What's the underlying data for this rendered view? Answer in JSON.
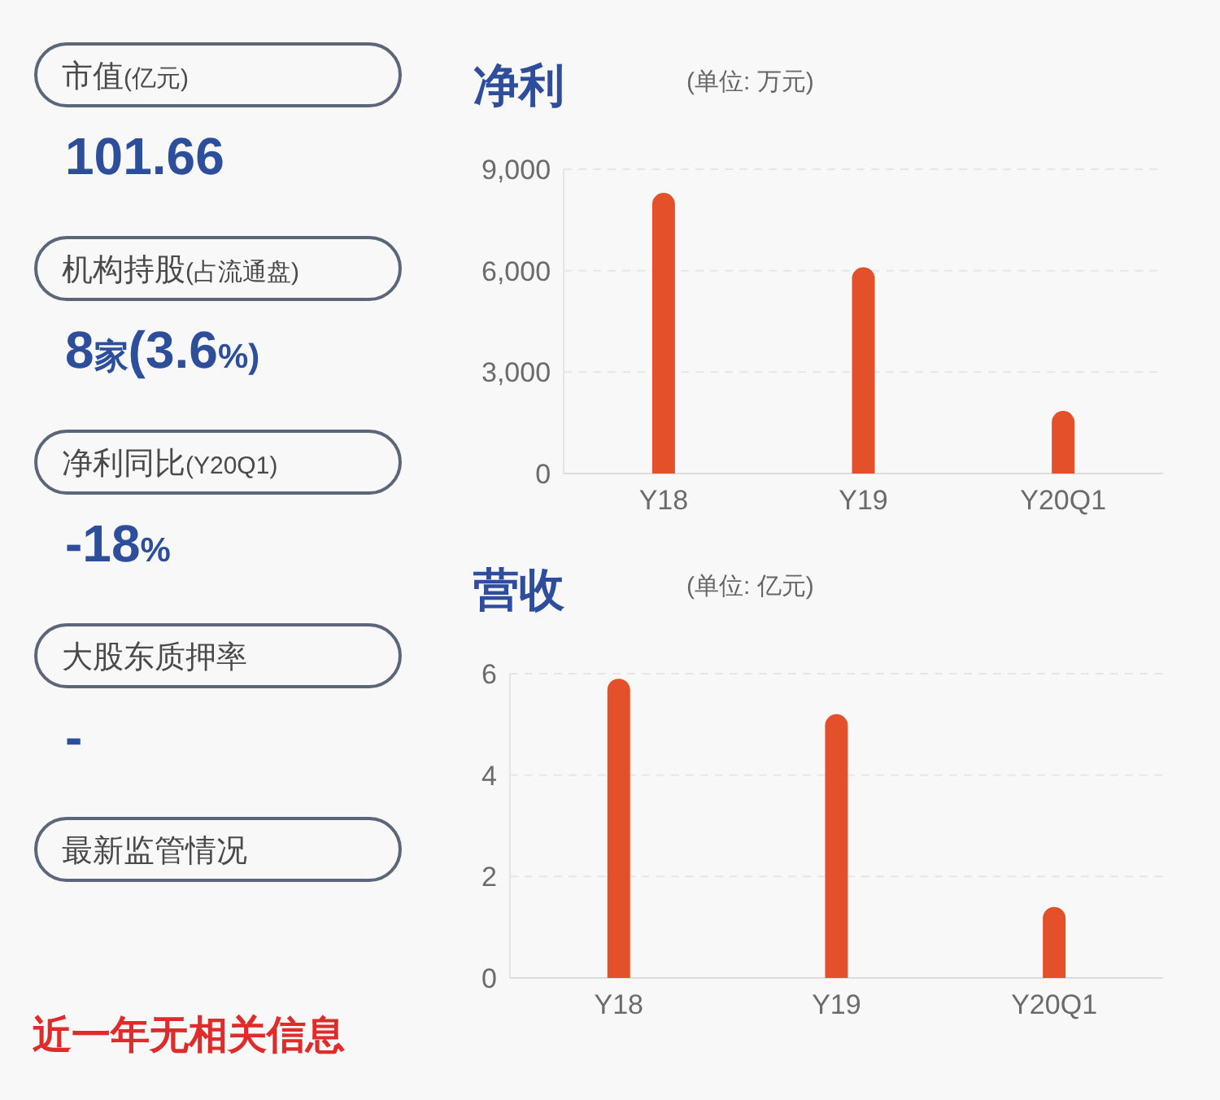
{
  "chart_data": [
    {
      "type": "other",
      "annotations": [
        "市值(亿元)",
        "101.66",
        "机构持股(占流通盘)",
        "8家(3.6%)",
        "净利同比(Y20Q1)",
        "-18%",
        "大股东质押率",
        "-",
        "最新监管情况",
        "近一年无相关信息"
      ]
    },
    {
      "type": "bar",
      "title": "净利",
      "subtitle": "(单位: 万元)",
      "categories": [
        "Y18",
        "Y19",
        "Y20Q1"
      ],
      "values": [
        8300,
        6100,
        1850
      ],
      "color": "#e3502a",
      "ylim": [
        0,
        9000
      ],
      "yticks": [
        0,
        {
          "value": 3000,
          "label": "3,000"
        },
        {
          "value": 6000,
          "label": "6,000"
        },
        {
          "value": 9000,
          "label": "9,000"
        }
      ],
      "grid": "y"
    },
    {
      "type": "bar",
      "title": "营收",
      "subtitle": "(单位: 亿元)",
      "categories": [
        "Y18",
        "Y19",
        "Y20Q1"
      ],
      "values": [
        5.9,
        5.2,
        1.4
      ],
      "color": "#e3502a",
      "ylim": [
        0,
        6
      ],
      "yticks": [
        0,
        2,
        4,
        6
      ],
      "grid": "y"
    }
  ]
}
